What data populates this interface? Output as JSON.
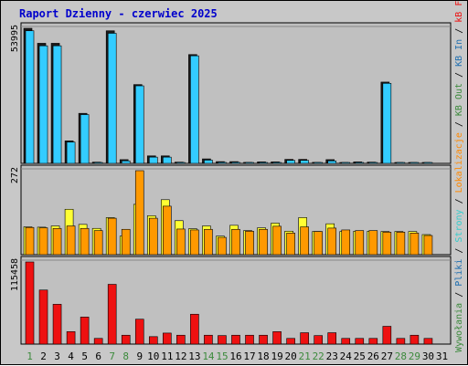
{
  "chart_data": {
    "type": "bar",
    "title": "Raport Dzienny -  czerwiec 2025",
    "days": [
      1,
      2,
      3,
      4,
      5,
      6,
      7,
      8,
      9,
      10,
      11,
      12,
      13,
      14,
      15,
      16,
      17,
      18,
      19,
      20,
      21,
      22,
      23,
      24,
      25,
      26,
      27,
      28,
      29,
      30,
      31
    ],
    "day_colors": [
      "#3c8a3c",
      "#000000",
      "#000000",
      "#000000",
      "#000000",
      "#000000",
      "#3c8a3c",
      "#3c8a3c",
      "#000000",
      "#000000",
      "#000000",
      "#000000",
      "#000000",
      "#3c8a3c",
      "#3c8a3c",
      "#000000",
      "#000000",
      "#000000",
      "#000000",
      "#000000",
      "#3c8a3c",
      "#3c8a3c",
      "#000000",
      "#000000",
      "#000000",
      "#000000",
      "#000000",
      "#3c8a3c",
      "#3c8a3c",
      "#000000",
      "#000000"
    ],
    "panels": [
      {
        "id": "visits",
        "max_label": "53995",
        "ylim": [
          0,
          53995
        ],
        "series": [
          {
            "name": "Wywołania",
            "color": "#1a1a1a",
            "values": [
              53995,
              48000,
              48000,
              9000,
              20000,
              500,
              53000,
              1500,
              31500,
              3000,
              3000,
              500,
              43500,
              1800,
              700,
              700,
              400,
              600,
              600,
              1600,
              1600,
              400,
              1500,
              300,
              600,
              500,
              32500,
              300,
              300,
              300,
              null
            ]
          },
          {
            "name": "Pliki",
            "color": "#33ccff",
            "values": [
              53000,
              47000,
              47000,
              8500,
              19500,
              300,
              52000,
              1000,
              31000,
              2500,
              2500,
              300,
              43000,
              1300,
              400,
              400,
              200,
              300,
              300,
              1200,
              1200,
              200,
              1000,
              200,
              300,
              300,
              32000,
              200,
              200,
              200,
              null
            ]
          }
        ]
      },
      {
        "id": "locales",
        "max_label": "272",
        "ylim": [
          0,
          272
        ],
        "series": [
          {
            "name": "Strony",
            "color": "#ffff33",
            "values": [
              90,
              89,
              93,
              147,
              98,
              85,
              120,
              60,
              163,
              126,
              178,
              110,
              84,
              93,
              60,
              95,
              78,
              87,
              102,
              76,
              120,
              75,
              100,
              75,
              76,
              76,
              75,
              75,
              75,
              65,
              null
            ]
          },
          {
            "name": "Lokalizacje",
            "color": "#ff9900",
            "values": [
              88,
              87,
              85,
              93,
              85,
              78,
              118,
              82,
              272,
              118,
              157,
              83,
              80,
              82,
              56,
              82,
              76,
              82,
              92,
              70,
              90,
              75,
              86,
              80,
              78,
              78,
              73,
              73,
              70,
              62,
              null
            ]
          }
        ]
      },
      {
        "id": "traffic",
        "max_label": "115458",
        "ylim": [
          0,
          115458
        ],
        "series": [
          {
            "name": "KB In",
            "color": "#0066cc",
            "values": [
              0,
              0,
              0,
              0,
              0,
              0,
              0,
              0,
              0,
              0,
              0,
              0,
              0,
              0,
              0,
              0,
              0,
              0,
              0,
              0,
              0,
              0,
              0,
              0,
              0,
              0,
              0,
              0,
              0,
              0,
              null
            ]
          },
          {
            "name": "KB Out",
            "color": "#ee1111",
            "values": [
              115458,
              76000,
              56000,
              17500,
              38000,
              8000,
              84000,
              12500,
              35000,
              10500,
              15500,
              12500,
              42000,
              12500,
              12000,
              12500,
              12500,
              12500,
              17500,
              8000,
              16000,
              12000,
              16000,
              8000,
              8000,
              8000,
              25000,
              8000,
              12500,
              8000,
              null
            ]
          }
        ]
      }
    ],
    "legend": [
      {
        "text": "Wywołania",
        "color": "#3c8a3c"
      },
      {
        "text": " / ",
        "color": "#000000"
      },
      {
        "text": "Pliki",
        "color": "#1f6fb0"
      },
      {
        "text": " / ",
        "color": "#000000"
      },
      {
        "text": "Strony",
        "color": "#33cccc"
      },
      {
        "text": " / ",
        "color": "#000000"
      },
      {
        "text": "Lokalizacje",
        "color": "#ff8800"
      },
      {
        "text": " / ",
        "color": "#000000"
      },
      {
        "text": "KB Out",
        "color": "#3c8a3c"
      },
      {
        "text": " / ",
        "color": "#000000"
      },
      {
        "text": "KB In",
        "color": "#1f6fb0"
      },
      {
        "text": " / ",
        "color": "#000000"
      },
      {
        "text": "kB F",
        "color": "#ee1111"
      }
    ]
  }
}
